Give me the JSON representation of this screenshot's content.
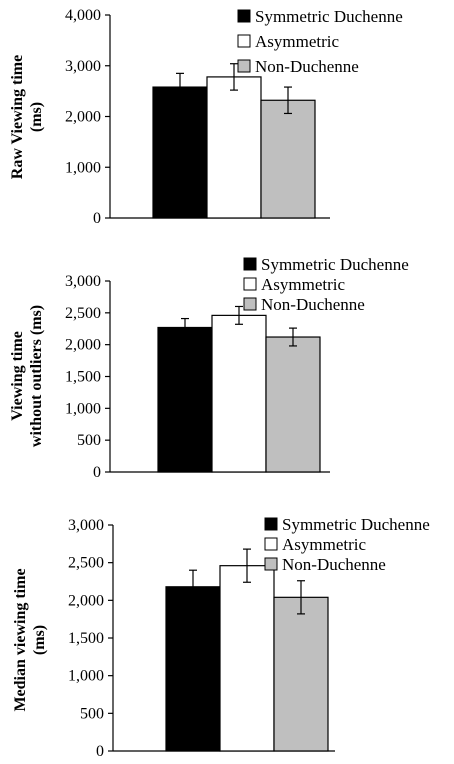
{
  "chart_data": [
    {
      "type": "bar",
      "ylabel_lines": [
        "Raw Viewing time",
        "(ms)"
      ],
      "ylim": [
        0,
        4000
      ],
      "yticks": [
        0,
        1000,
        2000,
        3000,
        4000
      ],
      "ytick_labels": [
        "0",
        "1,000",
        "2,000",
        "3,000",
        "4,000"
      ],
      "categories": [
        "Symmetric Duchenne",
        "Asymmetric",
        "Non-Duchenne"
      ],
      "values": [
        2580,
        2780,
        2320
      ],
      "errors": [
        270,
        260,
        260
      ],
      "colors": [
        "#000000",
        "#ffffff",
        "#bfbfbf"
      ],
      "legend": [
        "Symmetric Duchenne",
        "Asymmetric",
        "Non-Duchenne"
      ],
      "legend_position": "top-right",
      "grid": false
    },
    {
      "type": "bar",
      "ylabel_lines": [
        "Viewing time",
        "without outliers (ms)"
      ],
      "ylim": [
        0,
        3000
      ],
      "yticks": [
        0,
        500,
        1000,
        1500,
        2000,
        2500,
        3000
      ],
      "ytick_labels": [
        "0",
        "500",
        "1,000",
        "1,500",
        "2,000",
        "2,500",
        "3,000"
      ],
      "categories": [
        "Symmetric Duchenne",
        "Asymmetric",
        "Non-Duchenne"
      ],
      "values": [
        2270,
        2460,
        2120
      ],
      "errors": [
        140,
        140,
        140
      ],
      "colors": [
        "#000000",
        "#ffffff",
        "#bfbfbf"
      ],
      "legend": [
        "Symmetric Duchenne",
        "Asymmetric",
        "Non-Duchenne"
      ],
      "legend_position": "top-right",
      "grid": false
    },
    {
      "type": "bar",
      "ylabel_lines": [
        "Median viewing time",
        "(ms)"
      ],
      "ylim": [
        0,
        3000
      ],
      "yticks": [
        0,
        500,
        1000,
        1500,
        2000,
        2500,
        3000
      ],
      "ytick_labels": [
        "0",
        "500",
        "1,000",
        "1,500",
        "2,000",
        "2,500",
        "3,000"
      ],
      "categories": [
        "Symmetric Duchenne",
        "Asymmetric",
        "Non-Duchenne"
      ],
      "values": [
        2180,
        2460,
        2040
      ],
      "errors": [
        220,
        220,
        220
      ],
      "colors": [
        "#000000",
        "#ffffff",
        "#bfbfbf"
      ],
      "legend": [
        "Symmetric Duchenne",
        "Asymmetric",
        "Non-Duchenne"
      ],
      "legend_position": "top-right",
      "grid": false
    }
  ]
}
